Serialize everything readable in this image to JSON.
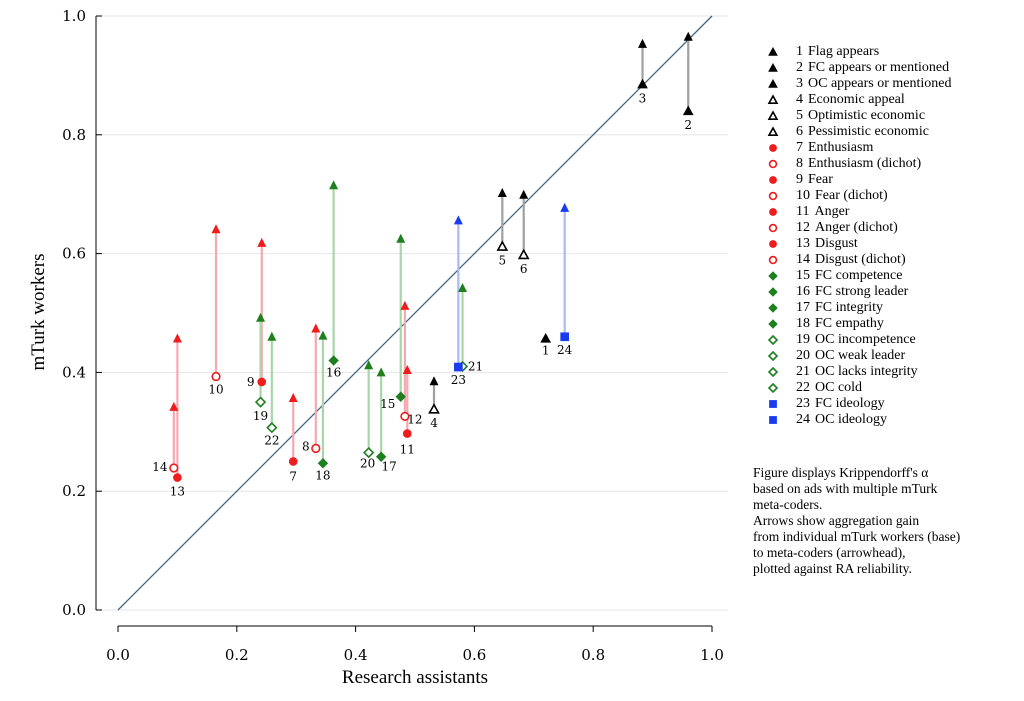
{
  "chart_data": {
    "type": "scatter",
    "xlabel": "Research assistants",
    "ylabel": "mTurk workers",
    "xlim": [
      0,
      1
    ],
    "ylim": [
      0,
      1
    ],
    "xticks": [
      "0.0",
      "0.2",
      "0.4",
      "0.6",
      "0.8",
      "1.0"
    ],
    "yticks": [
      "0.0",
      "0.2",
      "0.4",
      "0.6",
      "0.8",
      "1.0"
    ],
    "grid": "horizontal",
    "diagonal": "y = x",
    "legend_position": "right",
    "colors": {
      "black": "#000000",
      "red": "#ee1c1c",
      "green": "#1e7f1e",
      "blue": "#1a3cf0",
      "arrow_black": "#a0a0a0",
      "arrow_red": "#f6a8b0",
      "arrow_green": "#a9d6a9",
      "arrow_blue": "#a9b8f6",
      "diagonal": "#3e6385"
    },
    "series": [
      {
        "id": "1",
        "name": "Flag appears",
        "marker": "triangle",
        "color": "black",
        "x": 0.72,
        "y": 0.457,
        "y_meta": null,
        "label": "1"
      },
      {
        "id": "2",
        "name": "FC appears or mentioned",
        "marker": "triangle",
        "color": "black",
        "x": 0.96,
        "y": 0.84,
        "y_meta": 0.965,
        "label": "2"
      },
      {
        "id": "3",
        "name": "OC appears or mentioned",
        "marker": "triangle",
        "color": "black",
        "x": 0.883,
        "y": 0.885,
        "y_meta": 0.953,
        "label": "3"
      },
      {
        "id": "4",
        "name": "Economic appeal",
        "marker": "triangle-open",
        "color": "black",
        "x": 0.532,
        "y": 0.338,
        "y_meta": 0.385,
        "label": "4"
      },
      {
        "id": "5",
        "name": "Optimistic economic",
        "marker": "triangle-open",
        "color": "black",
        "x": 0.647,
        "y": 0.612,
        "y_meta": 0.702,
        "label": "5"
      },
      {
        "id": "6",
        "name": "Pessimistic economic",
        "marker": "triangle-open",
        "color": "black",
        "x": 0.683,
        "y": 0.598,
        "y_meta": 0.699,
        "label": "6"
      },
      {
        "id": "7",
        "name": "Enthusiasm",
        "marker": "circle",
        "color": "red",
        "x": 0.295,
        "y": 0.25,
        "y_meta": 0.357,
        "label": "7"
      },
      {
        "id": "8",
        "name": "Enthusiasm (dichot)",
        "marker": "circle-open",
        "color": "red",
        "x": 0.333,
        "y": 0.272,
        "y_meta": 0.474,
        "label": "8"
      },
      {
        "id": "9",
        "name": "Fear",
        "marker": "circle",
        "color": "red",
        "x": 0.242,
        "y": 0.384,
        "y_meta": 0.618,
        "label": "9"
      },
      {
        "id": "10",
        "name": "Fear (dichot)",
        "marker": "circle-open",
        "color": "red",
        "x": 0.165,
        "y": 0.393,
        "y_meta": 0.641,
        "label": "10"
      },
      {
        "id": "11",
        "name": "Anger",
        "marker": "circle",
        "color": "red",
        "x": 0.487,
        "y": 0.297,
        "y_meta": 0.404,
        "label": "11"
      },
      {
        "id": "12",
        "name": "Anger (dichot)",
        "marker": "circle-open",
        "color": "red",
        "x": 0.483,
        "y": 0.326,
        "y_meta": 0.512,
        "label": "12"
      },
      {
        "id": "13",
        "name": "Disgust",
        "marker": "circle",
        "color": "red",
        "x": 0.1,
        "y": 0.223,
        "y_meta": 0.457,
        "label": "13"
      },
      {
        "id": "14",
        "name": "Disgust (dichot)",
        "marker": "circle-open",
        "color": "red",
        "x": 0.094,
        "y": 0.239,
        "y_meta": 0.342,
        "label": "14"
      },
      {
        "id": "15",
        "name": "FC competence",
        "marker": "diamond",
        "color": "green",
        "x": 0.476,
        "y": 0.359,
        "y_meta": 0.625,
        "label": "15"
      },
      {
        "id": "16",
        "name": "FC strong leader",
        "marker": "diamond",
        "color": "green",
        "x": 0.363,
        "y": 0.42,
        "y_meta": 0.715,
        "label": "16"
      },
      {
        "id": "17",
        "name": "FC integrity",
        "marker": "diamond",
        "color": "green",
        "x": 0.443,
        "y": 0.258,
        "y_meta": 0.4,
        "label": "17"
      },
      {
        "id": "18",
        "name": "FC empathy",
        "marker": "diamond",
        "color": "green",
        "x": 0.345,
        "y": 0.247,
        "y_meta": 0.462,
        "label": "18"
      },
      {
        "id": "19",
        "name": "OC incompetence",
        "marker": "diamond-open",
        "color": "green",
        "x": 0.24,
        "y": 0.35,
        "y_meta": 0.492,
        "label": "19"
      },
      {
        "id": "20",
        "name": "OC weak leader",
        "marker": "diamond-open",
        "color": "green",
        "x": 0.422,
        "y": 0.265,
        "y_meta": 0.412,
        "label": "20"
      },
      {
        "id": "21",
        "name": "OC lacks integrity",
        "marker": "diamond-open",
        "color": "green",
        "x": 0.58,
        "y": 0.41,
        "y_meta": 0.542,
        "label": "21"
      },
      {
        "id": "22",
        "name": "OC cold",
        "marker": "diamond-open",
        "color": "green",
        "x": 0.259,
        "y": 0.307,
        "y_meta": 0.46,
        "label": "22"
      },
      {
        "id": "23",
        "name": "FC ideology",
        "marker": "square",
        "color": "blue",
        "x": 0.573,
        "y": 0.409,
        "y_meta": 0.656,
        "label": "23"
      },
      {
        "id": "24",
        "name": "OC ideology",
        "marker": "square",
        "color": "blue",
        "x": 0.752,
        "y": 0.46,
        "y_meta": 0.677,
        "label": "24"
      }
    ],
    "note": [
      "Figure displays Krippendorff's α",
      "based on ads with multiple mTurk",
      "meta-coders.",
      "Arrows show aggregation gain",
      "from individual mTurk workers (base)",
      "to meta-coders (arrowhead),",
      "plotted against RA reliability."
    ]
  }
}
